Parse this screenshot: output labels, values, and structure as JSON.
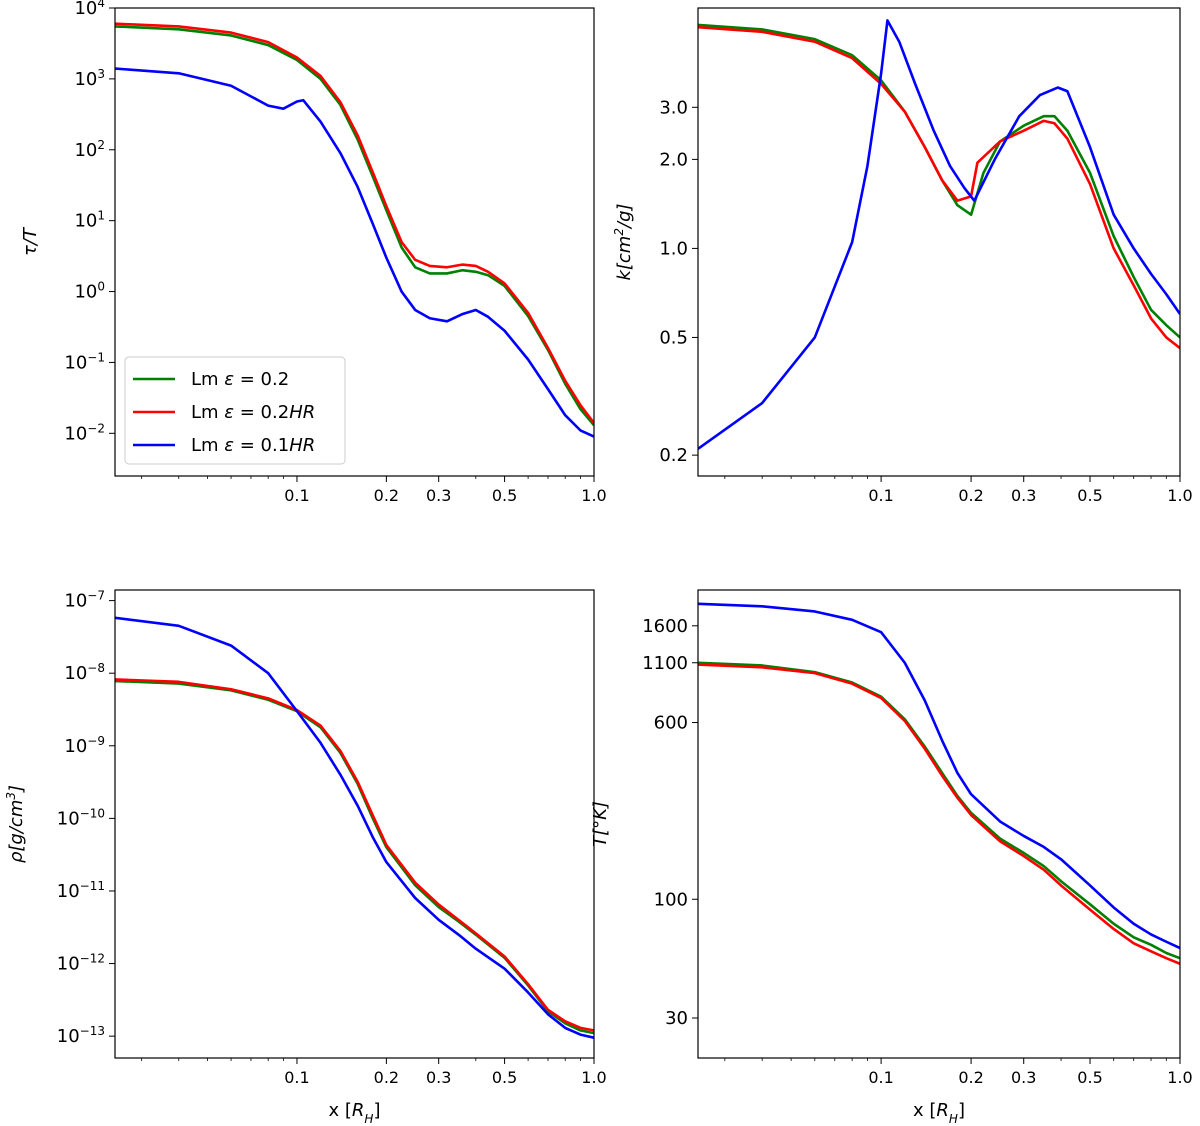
{
  "figure": {
    "xlabel": "x [R_H]"
  },
  "colors": {
    "Lm ε = 0.2": "#008000",
    "Lm ε = 0.2HR": "#ff0000",
    "Lm ε = 0.1HR": "#0000ff"
  },
  "legend": [
    {
      "name": "Lm ε = 0.2",
      "prefix": "Lm ",
      "sym": "ε",
      "mid": " = 0.2",
      "ital": ""
    },
    {
      "name": "Lm ε = 0.2HR",
      "prefix": "Lm ",
      "sym": "ε",
      "mid": " = 0.2",
      "ital": "HR"
    },
    {
      "name": "Lm ε = 0.1HR",
      "prefix": "Lm ",
      "sym": "ε",
      "mid": " = 0.1",
      "ital": "HR"
    }
  ],
  "chart_data": [
    {
      "type": "line",
      "id": "tau",
      "ylabel": "τ/T",
      "xscale": "log",
      "yscale": "log",
      "xlim": [
        0.0244,
        1.0
      ],
      "ylim": [
        0.0025,
        10000
      ],
      "xticks": [
        0.1,
        0.2,
        0.3,
        0.5,
        1.0
      ],
      "xtick_labels": [
        "0.1",
        "0.2",
        "0.3",
        "0.5",
        "1.0"
      ],
      "yticks": [
        0.01,
        0.1,
        1,
        10,
        100,
        1000,
        10000
      ],
      "ytick_labels": [
        {
          "base": "10",
          "exp": "−2"
        },
        {
          "base": "10",
          "exp": "−1"
        },
        {
          "base": "10",
          "exp": "0"
        },
        {
          "base": "10",
          "exp": "1"
        },
        {
          "base": "10",
          "exp": "2"
        },
        {
          "base": "10",
          "exp": "3"
        },
        {
          "base": "10",
          "exp": "4"
        }
      ],
      "series": [
        {
          "name": "Lm ε = 0.2",
          "x": [
            0.0244,
            0.04,
            0.06,
            0.08,
            0.1,
            0.12,
            0.14,
            0.16,
            0.18,
            0.2,
            0.225,
            0.25,
            0.28,
            0.32,
            0.36,
            0.4,
            0.44,
            0.5,
            0.6,
            0.7,
            0.8,
            0.9,
            1.0
          ],
          "y": [
            5500,
            5000,
            4100,
            3000,
            1850,
            1000,
            430,
            140,
            42,
            14,
            4.2,
            2.2,
            1.8,
            1.8,
            2.0,
            1.9,
            1.7,
            1.2,
            0.45,
            0.15,
            0.05,
            0.022,
            0.013
          ]
        },
        {
          "name": "Lm ε = 0.2HR",
          "x": [
            0.0244,
            0.04,
            0.06,
            0.08,
            0.1,
            0.12,
            0.14,
            0.16,
            0.18,
            0.2,
            0.225,
            0.25,
            0.28,
            0.32,
            0.36,
            0.4,
            0.44,
            0.5,
            0.6,
            0.7,
            0.8,
            0.9,
            1.0
          ],
          "y": [
            6000,
            5500,
            4500,
            3300,
            2000,
            1100,
            470,
            160,
            48,
            16,
            5.0,
            2.8,
            2.3,
            2.2,
            2.4,
            2.3,
            1.9,
            1.3,
            0.5,
            0.16,
            0.055,
            0.025,
            0.014
          ]
        },
        {
          "name": "Lm ε = 0.1HR",
          "x": [
            0.0244,
            0.04,
            0.06,
            0.08,
            0.09,
            0.1,
            0.105,
            0.12,
            0.14,
            0.16,
            0.18,
            0.2,
            0.225,
            0.25,
            0.28,
            0.32,
            0.36,
            0.4,
            0.44,
            0.5,
            0.6,
            0.7,
            0.8,
            0.9,
            1.0
          ],
          "y": [
            1400,
            1200,
            800,
            420,
            380,
            480,
            500,
            250,
            90,
            30,
            9.0,
            3.0,
            1.0,
            0.55,
            0.42,
            0.38,
            0.48,
            0.55,
            0.44,
            0.28,
            0.11,
            0.042,
            0.018,
            0.011,
            0.009
          ]
        }
      ]
    },
    {
      "type": "line",
      "id": "kappa",
      "ylabel": "k[cm²/g]",
      "xscale": "log",
      "yscale": "log",
      "xlim": [
        0.0244,
        1.0
      ],
      "ylim": [
        0.17,
        6.5
      ],
      "xticks": [
        0.1,
        0.2,
        0.3,
        0.5,
        1.0
      ],
      "xtick_labels": [
        "0.1",
        "0.2",
        "0.3",
        "0.5",
        "1.0"
      ],
      "yticks": [
        0.2,
        0.5,
        1.0,
        2.0,
        3.0
      ],
      "ytick_labels": [
        {
          "base": "0.2",
          "exp": ""
        },
        {
          "base": "0.5",
          "exp": ""
        },
        {
          "base": "1.0",
          "exp": ""
        },
        {
          "base": "2.0",
          "exp": ""
        },
        {
          "base": "3.0",
          "exp": ""
        }
      ],
      "series": [
        {
          "name": "Lm ε = 0.2",
          "x": [
            0.0244,
            0.04,
            0.06,
            0.08,
            0.1,
            0.12,
            0.14,
            0.16,
            0.18,
            0.2,
            0.22,
            0.25,
            0.3,
            0.35,
            0.38,
            0.42,
            0.5,
            0.6,
            0.7,
            0.8,
            0.9,
            1.0
          ],
          "y": [
            5.7,
            5.5,
            5.1,
            4.5,
            3.7,
            2.9,
            2.2,
            1.7,
            1.4,
            1.3,
            1.8,
            2.3,
            2.6,
            2.8,
            2.8,
            2.5,
            1.8,
            1.1,
            0.8,
            0.62,
            0.55,
            0.5
          ]
        },
        {
          "name": "Lm ε = 0.2HR",
          "x": [
            0.0244,
            0.04,
            0.06,
            0.08,
            0.1,
            0.12,
            0.14,
            0.16,
            0.18,
            0.2,
            0.21,
            0.25,
            0.3,
            0.35,
            0.38,
            0.42,
            0.5,
            0.6,
            0.7,
            0.8,
            0.9,
            1.0
          ],
          "y": [
            5.6,
            5.4,
            5.0,
            4.4,
            3.6,
            2.9,
            2.2,
            1.7,
            1.45,
            1.5,
            1.95,
            2.3,
            2.5,
            2.7,
            2.65,
            2.35,
            1.65,
            1.0,
            0.75,
            0.58,
            0.5,
            0.46
          ]
        },
        {
          "name": "Lm ε = 0.1HR",
          "x": [
            0.0244,
            0.04,
            0.06,
            0.08,
            0.09,
            0.1,
            0.105,
            0.115,
            0.13,
            0.15,
            0.17,
            0.19,
            0.205,
            0.24,
            0.29,
            0.34,
            0.39,
            0.42,
            0.5,
            0.6,
            0.7,
            0.8,
            0.9,
            1.0
          ],
          "y": [
            0.21,
            0.3,
            0.5,
            1.05,
            1.9,
            3.9,
            5.9,
            5.0,
            3.6,
            2.5,
            1.9,
            1.6,
            1.45,
            2.0,
            2.8,
            3.3,
            3.5,
            3.4,
            2.2,
            1.3,
            1.0,
            0.82,
            0.7,
            0.6
          ]
        }
      ]
    },
    {
      "type": "line",
      "id": "rho",
      "ylabel": "ρ[g/cm³]",
      "xlabel": "x [R_H]",
      "xscale": "log",
      "yscale": "log",
      "xlim": [
        0.0244,
        1.0
      ],
      "ylim": [
        5e-14,
        1.4e-07
      ],
      "xticks": [
        0.1,
        0.2,
        0.3,
        0.5,
        1.0
      ],
      "xtick_labels": [
        "0.1",
        "0.2",
        "0.3",
        "0.5",
        "1.0"
      ],
      "yticks": [
        1e-13,
        1e-12,
        1e-11,
        1e-10,
        1e-09,
        1e-08,
        1e-07
      ],
      "ytick_labels": [
        {
          "base": "10",
          "exp": "−13"
        },
        {
          "base": "10",
          "exp": "−12"
        },
        {
          "base": "10",
          "exp": "−11"
        },
        {
          "base": "10",
          "exp": "−10"
        },
        {
          "base": "10",
          "exp": "−9"
        },
        {
          "base": "10",
          "exp": "−8"
        },
        {
          "base": "10",
          "exp": "−7"
        }
      ],
      "series": [
        {
          "name": "Lm ε = 0.2",
          "x": [
            0.0244,
            0.04,
            0.06,
            0.08,
            0.1,
            0.12,
            0.14,
            0.16,
            0.18,
            0.2,
            0.25,
            0.3,
            0.35,
            0.4,
            0.5,
            0.6,
            0.7,
            0.8,
            0.9,
            1.0
          ],
          "y": [
            7.8e-09,
            7.2e-09,
            5.8e-09,
            4.3e-09,
            3e-09,
            1.8e-09,
            8e-10,
            3e-10,
            1e-10,
            4e-11,
            1.2e-11,
            6e-12,
            3.8e-12,
            2.5e-12,
            1.2e-12,
            5e-13,
            2.2e-13,
            1.5e-13,
            1.2e-13,
            1.1e-13
          ]
        },
        {
          "name": "Lm ε = 0.2HR",
          "x": [
            0.0244,
            0.04,
            0.06,
            0.08,
            0.1,
            0.12,
            0.14,
            0.16,
            0.18,
            0.2,
            0.25,
            0.3,
            0.35,
            0.4,
            0.5,
            0.6,
            0.7,
            0.8,
            0.9,
            1.0
          ],
          "y": [
            8.2e-09,
            7.6e-09,
            6e-09,
            4.5e-09,
            3.1e-09,
            1.9e-09,
            8.5e-10,
            3.2e-10,
            1.1e-10,
            4.3e-11,
            1.3e-11,
            6.5e-12,
            4e-12,
            2.6e-12,
            1.25e-12,
            5.2e-13,
            2.3e-13,
            1.6e-13,
            1.3e-13,
            1.2e-13
          ]
        },
        {
          "name": "Lm ε = 0.1HR",
          "x": [
            0.0244,
            0.04,
            0.06,
            0.08,
            0.1,
            0.12,
            0.14,
            0.16,
            0.18,
            0.2,
            0.25,
            0.3,
            0.35,
            0.4,
            0.5,
            0.6,
            0.7,
            0.8,
            0.9,
            1.0
          ],
          "y": [
            5.8e-08,
            4.5e-08,
            2.4e-08,
            1e-08,
            3e-09,
            1.1e-09,
            4e-10,
            1.5e-10,
            5.5e-11,
            2.5e-11,
            8e-12,
            4e-12,
            2.5e-12,
            1.6e-12,
            8.5e-13,
            4e-13,
            2e-13,
            1.3e-13,
            1.05e-13,
            9.5e-14
          ]
        }
      ]
    },
    {
      "type": "line",
      "id": "temp",
      "ylabel": "T[°K]",
      "xlabel": "x [R_H]",
      "xscale": "log",
      "yscale": "log",
      "xlim": [
        0.0244,
        1.0
      ],
      "ylim": [
        20,
        2300
      ],
      "xticks": [
        0.1,
        0.2,
        0.3,
        0.5,
        1.0
      ],
      "xtick_labels": [
        "0.1",
        "0.2",
        "0.3",
        "0.5",
        "1.0"
      ],
      "yticks": [
        30,
        100,
        600,
        1100,
        1600
      ],
      "ytick_labels": [
        {
          "base": "30",
          "exp": ""
        },
        {
          "base": "100",
          "exp": ""
        },
        {
          "base": "600",
          "exp": ""
        },
        {
          "base": "1100",
          "exp": ""
        },
        {
          "base": "1600",
          "exp": ""
        }
      ],
      "series": [
        {
          "name": "Lm ε = 0.2",
          "x": [
            0.0244,
            0.04,
            0.06,
            0.08,
            0.1,
            0.12,
            0.14,
            0.16,
            0.18,
            0.2,
            0.25,
            0.3,
            0.35,
            0.4,
            0.5,
            0.6,
            0.7,
            0.8,
            0.9,
            1.0
          ],
          "y": [
            1100,
            1070,
            1000,
            900,
            780,
            620,
            470,
            360,
            285,
            240,
            185,
            160,
            140,
            120,
            95,
            78,
            68,
            63,
            58,
            55
          ]
        },
        {
          "name": "Lm ε = 0.2HR",
          "x": [
            0.0244,
            0.04,
            0.06,
            0.08,
            0.1,
            0.12,
            0.14,
            0.16,
            0.18,
            0.2,
            0.25,
            0.3,
            0.35,
            0.4,
            0.5,
            0.6,
            0.7,
            0.8,
            0.9,
            1.0
          ],
          "y": [
            1080,
            1050,
            990,
            890,
            770,
            610,
            460,
            350,
            280,
            235,
            180,
            155,
            135,
            115,
            90,
            74,
            64,
            59,
            55,
            52
          ]
        },
        {
          "name": "Lm ε = 0.1HR",
          "x": [
            0.0244,
            0.04,
            0.06,
            0.08,
            0.1,
            0.12,
            0.14,
            0.16,
            0.18,
            0.2,
            0.25,
            0.3,
            0.35,
            0.4,
            0.5,
            0.6,
            0.7,
            0.8,
            0.9,
            1.0
          ],
          "y": [
            2000,
            1950,
            1850,
            1700,
            1500,
            1100,
            750,
            500,
            360,
            290,
            220,
            190,
            170,
            150,
            115,
            92,
            78,
            70,
            65,
            61
          ]
        }
      ]
    }
  ]
}
